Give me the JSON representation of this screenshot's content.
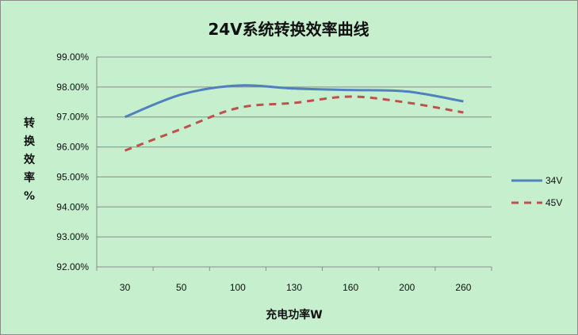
{
  "chart_data": {
    "type": "line",
    "title": "24V系统转换效率曲线",
    "xlabel": "充电功率W",
    "ylabel": [
      "转",
      "换",
      "效",
      "率",
      "%"
    ],
    "categories": [
      "30",
      "50",
      "100",
      "130",
      "160",
      "200",
      "260"
    ],
    "y_ticks": [
      "92.00%",
      "93.00%",
      "94.00%",
      "95.00%",
      "96.00%",
      "97.00%",
      "98.00%",
      "99.00%"
    ],
    "ylim": [
      92,
      99
    ],
    "grid": true,
    "legend_position": "right",
    "series": [
      {
        "name": "34V",
        "color": "#4f81bd",
        "dash": "solid",
        "values": [
          97.0,
          97.75,
          98.05,
          97.95,
          97.9,
          97.85,
          97.52
        ]
      },
      {
        "name": "45V",
        "color": "#c0504d",
        "dash": "dashed",
        "values": [
          95.88,
          96.6,
          97.3,
          97.47,
          97.68,
          97.48,
          97.15
        ]
      }
    ]
  }
}
